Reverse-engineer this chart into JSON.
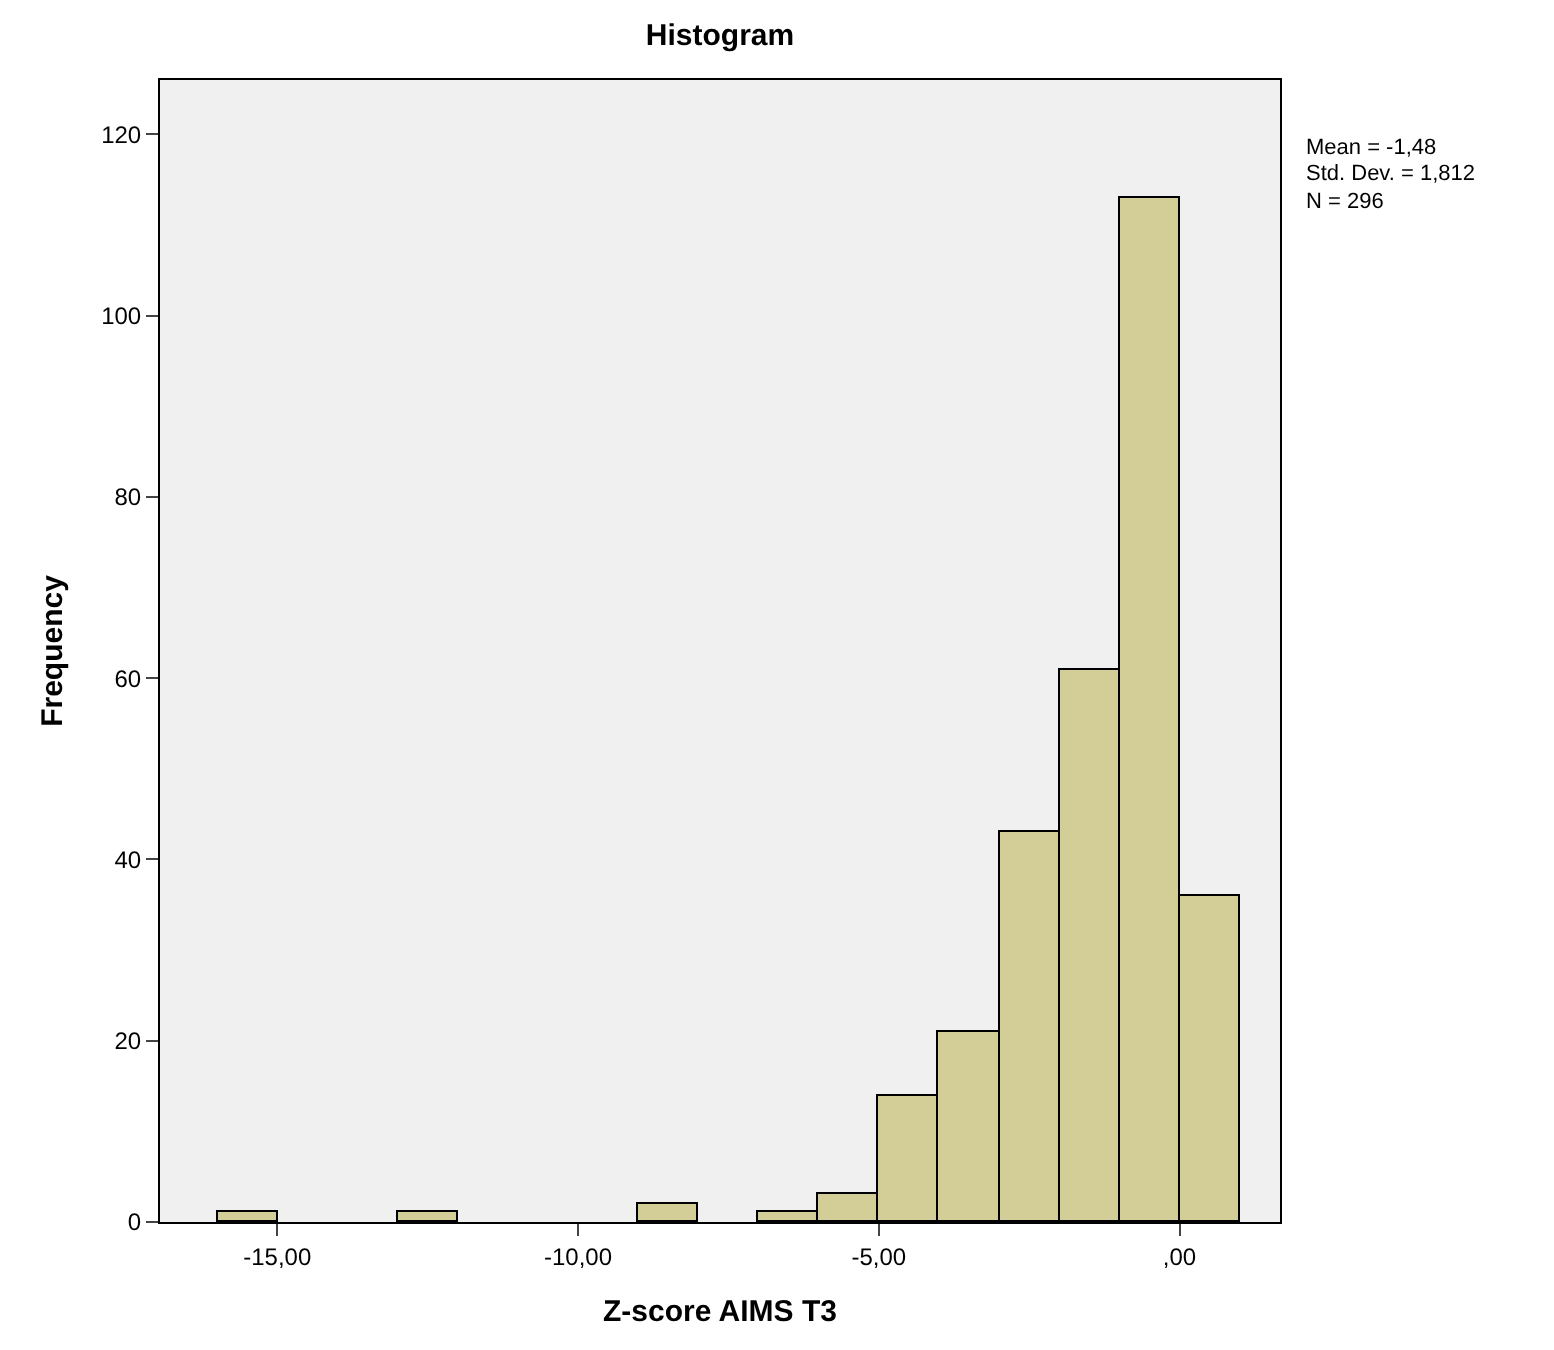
{
  "chart_data": {
    "type": "histogram",
    "title": "Histogram",
    "xlabel": "Z-score AIMS T3",
    "ylabel": "Frequency",
    "bins": [
      -16,
      -15,
      -14,
      -13,
      -12,
      -11,
      -10,
      -9,
      -8,
      -7,
      -6,
      -5,
      -4,
      -3,
      -2,
      -1,
      0,
      1
    ],
    "values": [
      1,
      0,
      0,
      1,
      0,
      0,
      0,
      2,
      0,
      1,
      3,
      14,
      21,
      43,
      61,
      113,
      36
    ],
    "color": "#d3ce97",
    "xlim": [
      -16.95,
      1.67
    ],
    "xticks": [
      {
        "value": -15,
        "label": "-15,00"
      },
      {
        "value": -10,
        "label": "-10,00"
      },
      {
        "value": -5,
        "label": "-5,00"
      },
      {
        "value": 0,
        "label": ",00"
      }
    ],
    "ylim": [
      0,
      126
    ],
    "yticks": [
      0,
      20,
      40,
      60,
      80,
      100,
      120
    ],
    "grid": false,
    "annotations": [
      "Mean = -1,48",
      "Std. Dev. = 1,812",
      "N = 296"
    ]
  }
}
